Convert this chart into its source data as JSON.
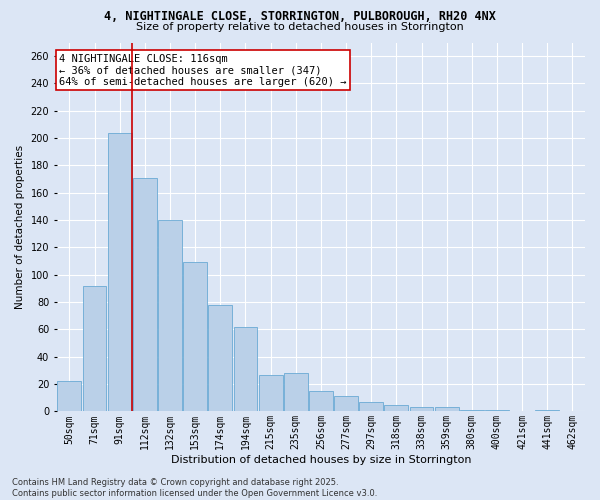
{
  "title1": "4, NIGHTINGALE CLOSE, STORRINGTON, PULBOROUGH, RH20 4NX",
  "title2": "Size of property relative to detached houses in Storrington",
  "xlabel": "Distribution of detached houses by size in Storrington",
  "ylabel": "Number of detached properties",
  "categories": [
    "50sqm",
    "71sqm",
    "91sqm",
    "112sqm",
    "132sqm",
    "153sqm",
    "174sqm",
    "194sqm",
    "215sqm",
    "235sqm",
    "256sqm",
    "277sqm",
    "297sqm",
    "318sqm",
    "338sqm",
    "359sqm",
    "380sqm",
    "400sqm",
    "421sqm",
    "441sqm",
    "462sqm"
  ],
  "bar_heights": [
    22,
    92,
    204,
    171,
    140,
    109,
    78,
    62,
    27,
    28,
    15,
    11,
    7,
    5,
    3,
    3,
    1,
    1,
    0,
    1,
    0
  ],
  "bar_color": "#bad0e8",
  "bar_edge_color": "#6aaad4",
  "bg_color": "#dce6f5",
  "grid_color": "#ffffff",
  "annotation_text": "4 NIGHTINGALE CLOSE: 116sqm\n← 36% of detached houses are smaller (347)\n64% of semi-detached houses are larger (620) →",
  "annotation_box_facecolor": "#ffffff",
  "annotation_box_edgecolor": "#cc0000",
  "vline_color": "#cc0000",
  "vline_x_index": 2.5,
  "ylim": [
    0,
    270
  ],
  "yticks": [
    0,
    20,
    40,
    60,
    80,
    100,
    120,
    140,
    160,
    180,
    200,
    220,
    240,
    260
  ],
  "fig_facecolor": "#dce6f5",
  "footnote": "Contains HM Land Registry data © Crown copyright and database right 2025.\nContains public sector information licensed under the Open Government Licence v3.0.",
  "title1_fontsize": 8.5,
  "title2_fontsize": 8.0,
  "xlabel_fontsize": 8.0,
  "ylabel_fontsize": 7.5,
  "tick_fontsize": 7.0,
  "annot_fontsize": 7.5,
  "footnote_fontsize": 6.0
}
